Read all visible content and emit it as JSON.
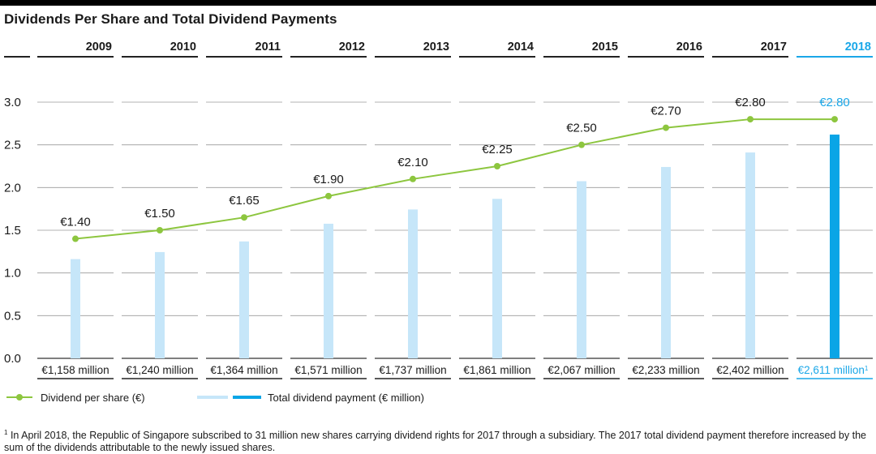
{
  "title": "Dividends Per Share and Total Dividend Payments",
  "footnote": {
    "marker": "1",
    "text": "In April 2018, the Republic of Singapore subscribed to 31 million new shares carrying dividend rights for 2017 through a subsidiary. The 2017 total dividend payment therefore increased by the sum of the dividends attributable to the newly issued shares."
  },
  "legend": {
    "line_label": "Dividend per share (€)",
    "bar_label": "Total dividend payment (€ million)"
  },
  "colors": {
    "line": "#8dc63f",
    "bar": "#c6e6f9",
    "bar_highlight": "#0aa5e6",
    "highlight_text": "#1aa7e8",
    "grid": "#9a9a9a"
  },
  "chart_data": {
    "type": "bar",
    "title": "Dividends Per Share and Total Dividend Payments",
    "categories": [
      "2009",
      "2010",
      "2011",
      "2012",
      "2013",
      "2014",
      "2015",
      "2016",
      "2017",
      "2018"
    ],
    "highlight_category": "2018",
    "ylim": [
      0,
      3.0
    ],
    "yticks": [
      "0.0",
      "0.5",
      "1.0",
      "1.5",
      "2.0",
      "2.5",
      "3.0"
    ],
    "series": [
      {
        "name": "Dividend per share (€)",
        "type": "line",
        "values": [
          1.4,
          1.5,
          1.65,
          1.9,
          2.1,
          2.25,
          2.5,
          2.7,
          2.8,
          2.8
        ],
        "labels": [
          "€1.40",
          "€1.50",
          "€1.65",
          "€1.90",
          "€2.10",
          "€2.25",
          "€2.50",
          "€2.70",
          "€2.80",
          "€2.80"
        ]
      },
      {
        "name": "Total dividend payment (€ million)",
        "type": "bar",
        "values": [
          1158,
          1240,
          1364,
          1571,
          1737,
          1861,
          2067,
          2233,
          2402,
          2611
        ],
        "labels": [
          "€1,158 million",
          "€1,240 million",
          "€1,364 million",
          "€1,571 million",
          "€1,737 million",
          "€1,861 million",
          "€2,067 million",
          "€2,233 million",
          "€2,402 million",
          "€2,611 million"
        ],
        "footnote_on": "2018",
        "footnote_marker": "1"
      }
    ]
  }
}
